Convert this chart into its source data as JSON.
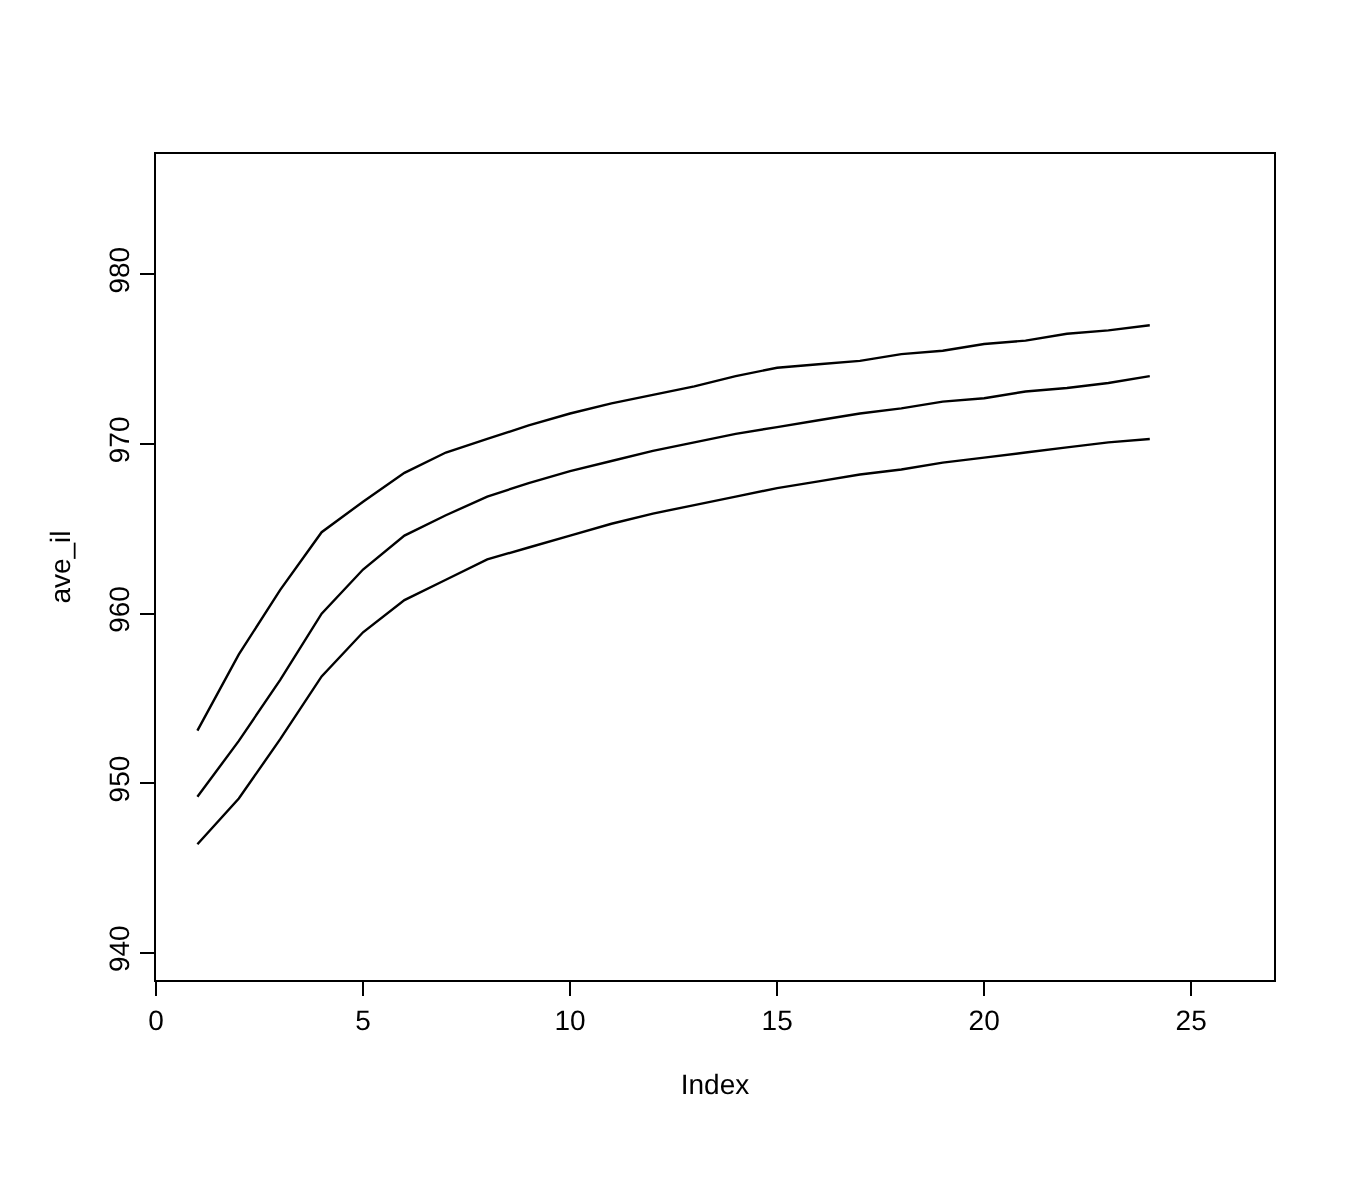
{
  "chart_data": {
    "type": "line",
    "xlabel": "Index",
    "ylabel": "ave_il",
    "x": [
      1,
      2,
      3,
      4,
      5,
      6,
      7,
      8,
      9,
      10,
      11,
      12,
      13,
      14,
      15,
      16,
      17,
      18,
      19,
      20,
      21,
      22,
      23,
      24
    ],
    "series": [
      {
        "color": "#000000",
        "values": [
          953.1,
          957.6,
          961.4,
          964.8,
          966.6,
          968.3,
          969.5,
          970.3,
          971.1,
          971.8,
          972.4,
          972.9,
          973.4,
          974.0,
          974.5,
          974.7,
          974.9,
          975.3,
          975.5,
          975.9,
          976.1,
          976.5,
          976.7,
          977.0
        ]
      },
      {
        "color": "#000000",
        "values": [
          949.2,
          952.5,
          956.1,
          960.0,
          962.6,
          964.6,
          965.8,
          966.9,
          967.7,
          968.4,
          969.0,
          969.6,
          970.1,
          970.6,
          971.0,
          971.4,
          971.8,
          972.1,
          972.5,
          972.7,
          973.1,
          973.3,
          973.6,
          974.0
        ]
      },
      {
        "color": "#000000",
        "values": [
          946.4,
          949.1,
          952.6,
          956.3,
          958.9,
          960.8,
          962.0,
          963.2,
          963.9,
          964.6,
          965.3,
          965.9,
          966.4,
          966.9,
          967.4,
          967.8,
          968.2,
          968.5,
          968.9,
          969.2,
          969.5,
          969.8,
          970.1,
          970.3
        ]
      }
    ],
    "xlim": [
      0,
      27
    ],
    "xticks": [
      0,
      5,
      10,
      15,
      20,
      25
    ],
    "ylim": [
      938.4,
      987.1
    ],
    "yticks": [
      940,
      950,
      960,
      970,
      980
    ],
    "marker": "none",
    "line_style": "solid"
  }
}
